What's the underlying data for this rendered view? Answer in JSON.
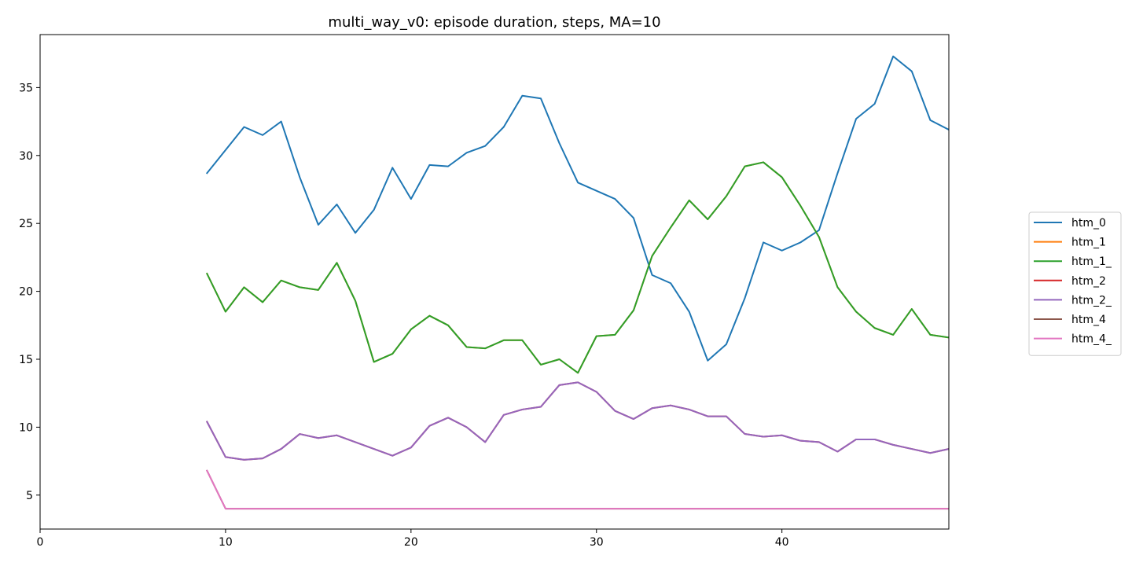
{
  "chart_data": {
    "type": "line",
    "title": "multi_way_v0: episode duration, steps, MA=10",
    "xlabel": "",
    "ylabel": "",
    "xlim": [
      0,
      49
    ],
    "ylim": [
      2.5,
      38.9
    ],
    "xticks": [
      0,
      10,
      20,
      30,
      40
    ],
    "yticks": [
      5,
      10,
      15,
      20,
      25,
      30,
      35
    ],
    "grid": false,
    "legend_position": "right",
    "x": [
      9,
      10,
      11,
      12,
      13,
      14,
      15,
      16,
      17,
      18,
      19,
      20,
      21,
      22,
      23,
      24,
      25,
      26,
      27,
      28,
      29,
      30,
      31,
      32,
      33,
      34,
      35,
      36,
      37,
      38,
      39,
      40,
      41,
      42,
      43,
      44,
      45,
      46,
      47,
      48,
      49
    ],
    "series": [
      {
        "name": "htm_0",
        "color": "#1f77b4",
        "values": [
          28.7,
          30.4,
          32.1,
          31.5,
          32.5,
          28.4,
          24.9,
          26.4,
          24.3,
          26.0,
          29.1,
          26.8,
          29.3,
          29.2,
          30.2,
          30.7,
          32.1,
          34.4,
          34.2,
          30.9,
          28.0,
          27.4,
          26.8,
          25.4,
          21.2,
          20.6,
          18.5,
          14.9,
          16.1,
          19.5,
          23.6,
          23.0,
          23.6,
          24.5,
          28.7,
          32.7,
          33.8,
          37.3,
          36.2,
          32.6,
          31.9
        ]
      },
      {
        "name": "htm_1",
        "color": "#ff7f0e",
        "values": [
          21.3,
          18.5,
          20.3,
          19.2,
          20.8,
          20.3,
          20.1,
          22.1,
          19.3,
          14.8,
          15.4,
          17.2,
          18.2,
          17.5,
          15.9,
          15.8,
          16.4,
          16.4,
          14.6,
          15.0,
          14.0,
          16.7,
          16.8,
          18.6,
          22.6,
          24.7,
          26.7,
          25.3,
          27.0,
          29.2,
          29.5,
          28.4,
          26.3,
          24.0,
          20.3,
          18.5,
          17.3,
          16.8,
          18.7,
          16.8,
          16.6
        ]
      },
      {
        "name": "htm_1_",
        "color": "#2ca02c",
        "values": [
          21.3,
          18.5,
          20.3,
          19.2,
          20.8,
          20.3,
          20.1,
          22.1,
          19.3,
          14.8,
          15.4,
          17.2,
          18.2,
          17.5,
          15.9,
          15.8,
          16.4,
          16.4,
          14.6,
          15.0,
          14.0,
          16.7,
          16.8,
          18.6,
          22.6,
          24.7,
          26.7,
          25.3,
          27.0,
          29.2,
          29.5,
          28.4,
          26.3,
          24.0,
          20.3,
          18.5,
          17.3,
          16.8,
          18.7,
          16.8,
          16.6
        ]
      },
      {
        "name": "htm_2",
        "color": "#d62728",
        "values": [
          10.4,
          7.8,
          7.6,
          7.7,
          8.4,
          9.5,
          9.2,
          9.4,
          8.9,
          8.4,
          7.9,
          8.5,
          10.1,
          10.7,
          10.0,
          8.9,
          10.9,
          11.3,
          11.5,
          13.1,
          13.3,
          12.6,
          11.2,
          10.6,
          11.4,
          11.6,
          11.3,
          10.8,
          10.8,
          9.5,
          9.3,
          9.4,
          9.0,
          8.9,
          8.2,
          9.1,
          9.1,
          8.7,
          8.4,
          8.1,
          8.4
        ]
      },
      {
        "name": "htm_2_",
        "color": "#9467bd",
        "values": [
          10.4,
          7.8,
          7.6,
          7.7,
          8.4,
          9.5,
          9.2,
          9.4,
          8.9,
          8.4,
          7.9,
          8.5,
          10.1,
          10.7,
          10.0,
          8.9,
          10.9,
          11.3,
          11.5,
          13.1,
          13.3,
          12.6,
          11.2,
          10.6,
          11.4,
          11.6,
          11.3,
          10.8,
          10.8,
          9.5,
          9.3,
          9.4,
          9.0,
          8.9,
          8.2,
          9.1,
          9.1,
          8.7,
          8.4,
          8.1,
          8.4
        ]
      },
      {
        "name": "htm_4",
        "color": "#8c564b",
        "values": [
          6.8,
          4.0,
          4.0,
          4.0,
          4.0,
          4.0,
          4.0,
          4.0,
          4.0,
          4.0,
          4.0,
          4.0,
          4.0,
          4.0,
          4.0,
          4.0,
          4.0,
          4.0,
          4.0,
          4.0,
          4.0,
          4.0,
          4.0,
          4.0,
          4.0,
          4.0,
          4.0,
          4.0,
          4.0,
          4.0,
          4.0,
          4.0,
          4.0,
          4.0,
          4.0,
          4.0,
          4.0,
          4.0,
          4.0,
          4.0,
          4.0
        ]
      },
      {
        "name": "htm_4_",
        "color": "#e377c2",
        "values": [
          6.8,
          4.0,
          4.0,
          4.0,
          4.0,
          4.0,
          4.0,
          4.0,
          4.0,
          4.0,
          4.0,
          4.0,
          4.0,
          4.0,
          4.0,
          4.0,
          4.0,
          4.0,
          4.0,
          4.0,
          4.0,
          4.0,
          4.0,
          4.0,
          4.0,
          4.0,
          4.0,
          4.0,
          4.0,
          4.0,
          4.0,
          4.0,
          4.0,
          4.0,
          4.0,
          4.0,
          4.0,
          4.0,
          4.0,
          4.0,
          4.0
        ]
      }
    ]
  }
}
